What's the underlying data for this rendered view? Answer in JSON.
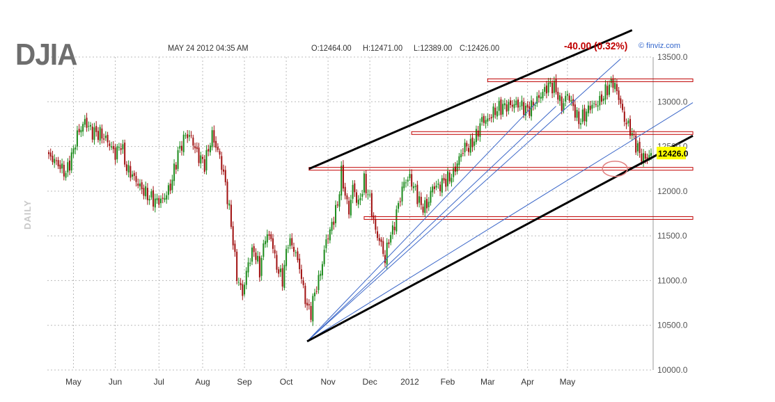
{
  "header": {
    "ticker": "DJIA",
    "datetime": "MAY 24 2012 04:35 AM",
    "open": "O:12464.00",
    "high": "H:12471.00",
    "low": "L:12389.00",
    "close": "C:12426.00",
    "change": "-40.00 (0.32%)",
    "brand": "© finviz.com",
    "period": "DAILY"
  },
  "colors": {
    "up": "#1b8a1b",
    "down": "#a01010",
    "grid": "#bbbbbb",
    "trend_black": "#000000",
    "trend_blue": "#3a66c8",
    "support_red": "#c00000",
    "last_price_bg": "#ffff00"
  },
  "chart_data": {
    "type": "candlestick",
    "title": "DJIA",
    "xlabel": "",
    "ylabel": "",
    "ylim": [
      10000,
      13500
    ],
    "yticks": [
      "13500.0",
      "13000.0",
      "12500.0",
      "12000.0",
      "11500.0",
      "11000.0",
      "10500.0",
      "10000.0"
    ],
    "xticks": [
      "May",
      "Jun",
      "Jul",
      "Aug",
      "Sep",
      "Oct",
      "Nov",
      "Dec",
      "2012",
      "Feb",
      "Mar",
      "Apr",
      "May"
    ],
    "last_price": "12426.0",
    "grid": true,
    "price_path": [
      [
        0,
        12380
      ],
      [
        3,
        12350
      ],
      [
        6,
        12270
      ],
      [
        9,
        12200
      ],
      [
        12,
        12380
      ],
      [
        15,
        12630
      ],
      [
        19,
        12780
      ],
      [
        23,
        12660
      ],
      [
        27,
        12640
      ],
      [
        31,
        12560
      ],
      [
        35,
        12410
      ],
      [
        38,
        12530
      ],
      [
        41,
        12250
      ],
      [
        44,
        12180
      ],
      [
        48,
        12050
      ],
      [
        52,
        11950
      ],
      [
        56,
        11890
      ],
      [
        60,
        11900
      ],
      [
        64,
        12050
      ],
      [
        68,
        12420
      ],
      [
        72,
        12630
      ],
      [
        75,
        12600
      ],
      [
        78,
        12420
      ],
      [
        82,
        12300
      ],
      [
        86,
        12630
      ],
      [
        88,
        12500
      ],
      [
        90,
        12390
      ],
      [
        93,
        12080
      ],
      [
        96,
        11630
      ],
      [
        99,
        11050
      ],
      [
        102,
        10850
      ],
      [
        105,
        11200
      ],
      [
        108,
        11350
      ],
      [
        111,
        11110
      ],
      [
        114,
        11500
      ],
      [
        117,
        11480
      ],
      [
        120,
        11150
      ],
      [
        123,
        11010
      ],
      [
        126,
        11450
      ],
      [
        129,
        11360
      ],
      [
        132,
        11150
      ],
      [
        134,
        10900
      ],
      [
        136,
        10700
      ],
      [
        138,
        10650
      ],
      [
        140,
        10870
      ],
      [
        142,
        11000
      ],
      [
        144,
        11200
      ],
      [
        146,
        11450
      ],
      [
        148,
        11550
      ],
      [
        150,
        11700
      ],
      [
        152,
        11850
      ],
      [
        154,
        12200
      ],
      [
        156,
        11960
      ],
      [
        158,
        11770
      ],
      [
        160,
        12050
      ],
      [
        163,
        11850
      ],
      [
        166,
        12110
      ],
      [
        169,
        11900
      ],
      [
        172,
        11550
      ],
      [
        175,
        11400
      ],
      [
        177,
        11230
      ],
      [
        179,
        11470
      ],
      [
        181,
        11550
      ],
      [
        184,
        11850
      ],
      [
        187,
        12100
      ],
      [
        190,
        12150
      ],
      [
        193,
        12000
      ],
      [
        196,
        11830
      ],
      [
        199,
        11830
      ],
      [
        202,
        12050
      ],
      [
        205,
        12050
      ],
      [
        208,
        12110
      ],
      [
        211,
        12150
      ],
      [
        213,
        12200
      ],
      [
        216,
        12370
      ],
      [
        219,
        12500
      ],
      [
        222,
        12500
      ],
      [
        225,
        12620
      ],
      [
        228,
        12800
      ],
      [
        231,
        12790
      ],
      [
        234,
        12880
      ],
      [
        237,
        12930
      ],
      [
        240,
        12950
      ],
      [
        243,
        12960
      ],
      [
        246,
        12980
      ],
      [
        249,
        12950
      ],
      [
        252,
        12900
      ],
      [
        255,
        12970
      ],
      [
        258,
        13050
      ],
      [
        261,
        13130
      ],
      [
        264,
        13200
      ],
      [
        267,
        13130
      ],
      [
        270,
        12940
      ],
      [
        273,
        13090
      ],
      [
        276,
        12940
      ],
      [
        279,
        12780
      ],
      [
        282,
        12850
      ],
      [
        285,
        12950
      ],
      [
        288,
        12970
      ],
      [
        291,
        13030
      ],
      [
        294,
        13150
      ],
      [
        297,
        13230
      ],
      [
        300,
        13050
      ],
      [
        303,
        12800
      ],
      [
        306,
        12690
      ],
      [
        309,
        12520
      ],
      [
        312,
        12380
      ],
      [
        315,
        12370
      ],
      [
        317,
        12426
      ]
    ],
    "x_index_range": [
      0,
      317
    ],
    "annotations": {
      "channel_upper": [
        [
          137,
          12250
        ],
        [
          307,
          13800
        ]
      ],
      "channel_lower": [
        [
          136,
          10320
        ],
        [
          339,
          12620
        ]
      ],
      "fan_lines": [
        [
          [
            136,
            10320
          ],
          [
            257,
            13000
          ]
        ],
        [
          [
            136,
            10320
          ],
          [
            267,
            12950
          ]
        ],
        [
          [
            136,
            10320
          ],
          [
            301,
            13480
          ]
        ],
        [
          [
            136,
            10320
          ],
          [
            339,
            12990
          ]
        ]
      ],
      "horizontal_levels": [
        [
          [
            231,
            13240
          ],
          [
            339,
            13240
          ]
        ],
        [
          [
            191,
            12650
          ],
          [
            339,
            12650
          ]
        ],
        [
          [
            137,
            12250
          ],
          [
            339,
            12250
          ]
        ],
        [
          [
            166,
            11700
          ],
          [
            339,
            11700
          ]
        ]
      ],
      "circle_marker": [
        298,
        12250
      ]
    }
  }
}
